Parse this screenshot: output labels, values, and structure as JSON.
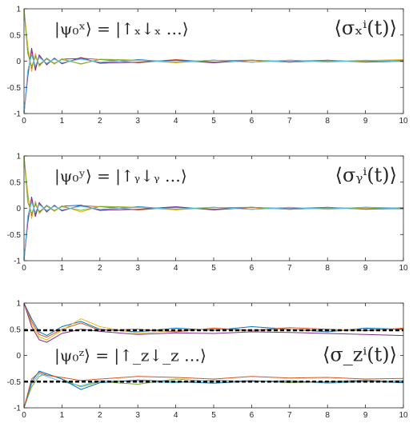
{
  "colors": {
    "axis": "#262626",
    "series": [
      "#0072BD",
      "#D95319",
      "#EDB120",
      "#7E2F8E",
      "#77AC30",
      "#4DBEEE"
    ],
    "reference": "#000000"
  },
  "chart_data": [
    {
      "type": "line",
      "xlim": [
        0,
        10
      ],
      "ylim": [
        -1,
        1
      ],
      "xticks": [
        "0",
        "1",
        "2",
        "3",
        "4",
        "5",
        "6",
        "7",
        "8",
        "9",
        "10"
      ],
      "yticks": [
        "-1",
        "-0.5",
        "0",
        "0.5",
        "1"
      ],
      "grid": false,
      "state_label": "|ψ₀ˣ⟩ = |↑ₓ↓ₓ …⟩",
      "observable_label": "⟨σₓⁱ(t)⟩",
      "series": [
        {
          "x": [
            0,
            0.1,
            0.2,
            0.3,
            0.4,
            0.6,
            0.8,
            1.0,
            1.5,
            2,
            3,
            4,
            5,
            6,
            7,
            8,
            9,
            10
          ],
          "y": [
            1,
            0.2,
            -0.15,
            0.12,
            -0.08,
            0.06,
            -0.05,
            0.04,
            0.05,
            -0.03,
            0.03,
            -0.02,
            0.02,
            -0.02,
            0.02,
            -0.01,
            0.01,
            0.0
          ]
        },
        {
          "x": [
            0,
            0.1,
            0.2,
            0.3,
            0.4,
            0.6,
            0.8,
            1.0,
            1.5,
            2,
            3,
            4,
            5,
            6,
            7,
            8,
            9,
            10
          ],
          "y": [
            -1,
            -0.25,
            0.2,
            -0.12,
            0.1,
            -0.06,
            0.05,
            -0.04,
            0.06,
            0.03,
            -0.03,
            0.03,
            -0.02,
            0.02,
            -0.02,
            0.01,
            -0.01,
            0.02
          ]
        },
        {
          "x": [
            0,
            0.1,
            0.2,
            0.3,
            0.4,
            0.6,
            0.8,
            1.0,
            1.5,
            2,
            3,
            4,
            5,
            6,
            7,
            8,
            9,
            10
          ],
          "y": [
            1,
            0.3,
            -0.2,
            0.15,
            -0.1,
            0.05,
            -0.06,
            0.05,
            -0.06,
            0.04,
            0.02,
            -0.03,
            0.02,
            -0.01,
            0.02,
            -0.02,
            0.01,
            0.03
          ]
        },
        {
          "x": [
            0,
            0.1,
            0.2,
            0.3,
            0.4,
            0.6,
            0.8,
            1.0,
            1.5,
            2,
            3,
            4,
            5,
            6,
            7,
            8,
            9,
            10
          ],
          "y": [
            -1,
            -0.3,
            0.25,
            -0.18,
            0.12,
            -0.07,
            0.06,
            -0.05,
            0.07,
            -0.04,
            -0.02,
            0.02,
            -0.03,
            0.02,
            -0.01,
            0.02,
            -0.02,
            0.0
          ]
        },
        {
          "x": [
            0,
            0.1,
            0.2,
            0.3,
            0.4,
            0.6,
            0.8,
            1.0,
            1.5,
            2,
            3,
            4,
            5,
            6,
            7,
            8,
            9,
            10
          ],
          "y": [
            1,
            0.15,
            -0.1,
            0.08,
            -0.06,
            0.04,
            -0.04,
            0.03,
            -0.05,
            0.03,
            0.02,
            -0.02,
            0.01,
            0.02,
            -0.02,
            0.01,
            -0.01,
            0.01
          ]
        },
        {
          "x": [
            0,
            0.1,
            0.2,
            0.3,
            0.4,
            0.6,
            0.8,
            1.0,
            1.5,
            2,
            3,
            4,
            5,
            6,
            7,
            8,
            9,
            10
          ],
          "y": [
            -1,
            -0.18,
            0.12,
            -0.09,
            0.07,
            -0.04,
            0.04,
            -0.03,
            0.04,
            -0.02,
            0.02,
            -0.01,
            0.02,
            -0.02,
            0.01,
            -0.01,
            0.02,
            -0.01
          ]
        }
      ]
    },
    {
      "type": "line",
      "xlim": [
        0,
        10
      ],
      "ylim": [
        -1,
        1
      ],
      "xticks": [
        "0",
        "1",
        "2",
        "3",
        "4",
        "5",
        "6",
        "7",
        "8",
        "9",
        "10"
      ],
      "yticks": [
        "-1",
        "-0.5",
        "0",
        "0.5",
        "1"
      ],
      "grid": false,
      "state_label": "|ψ₀ʸ⟩ = |↑ᵧ↓ᵧ …⟩",
      "observable_label": "⟨σᵧⁱ(t)⟩",
      "series": [
        {
          "x": [
            0,
            0.1,
            0.2,
            0.3,
            0.4,
            0.6,
            0.8,
            1.0,
            1.5,
            2,
            3,
            4,
            5,
            6,
            7,
            8,
            9,
            10
          ],
          "y": [
            1,
            0.25,
            -0.15,
            0.1,
            -0.08,
            0.06,
            -0.05,
            0.04,
            0.06,
            -0.03,
            0.03,
            -0.02,
            0.02,
            -0.02,
            0.01,
            -0.01,
            0.02,
            0.0
          ]
        },
        {
          "x": [
            0,
            0.1,
            0.2,
            0.3,
            0.4,
            0.6,
            0.8,
            1.0,
            1.5,
            2,
            3,
            4,
            5,
            6,
            7,
            8,
            9,
            10
          ],
          "y": [
            -1,
            -0.2,
            0.18,
            -0.12,
            0.09,
            -0.06,
            0.05,
            -0.04,
            0.05,
            0.03,
            -0.03,
            0.02,
            -0.02,
            0.02,
            -0.02,
            0.01,
            -0.01,
            0.01
          ]
        },
        {
          "x": [
            0,
            0.1,
            0.2,
            0.3,
            0.4,
            0.6,
            0.8,
            1.0,
            1.5,
            2,
            3,
            4,
            5,
            6,
            7,
            8,
            9,
            10
          ],
          "y": [
            1,
            0.3,
            -0.2,
            0.14,
            -0.1,
            0.05,
            -0.06,
            0.05,
            -0.07,
            0.04,
            0.02,
            -0.03,
            0.02,
            -0.01,
            0.02,
            -0.02,
            0.01,
            -0.02
          ]
        },
        {
          "x": [
            0,
            0.1,
            0.2,
            0.3,
            0.4,
            0.6,
            0.8,
            1.0,
            1.5,
            2,
            3,
            4,
            5,
            6,
            7,
            8,
            9,
            10
          ],
          "y": [
            -1,
            -0.28,
            0.22,
            -0.16,
            0.11,
            -0.07,
            0.06,
            -0.05,
            0.06,
            -0.04,
            -0.02,
            0.03,
            -0.03,
            0.02,
            -0.01,
            0.02,
            -0.02,
            0.0
          ]
        },
        {
          "x": [
            0,
            0.1,
            0.2,
            0.3,
            0.4,
            0.6,
            0.8,
            1.0,
            1.5,
            2,
            3,
            4,
            5,
            6,
            7,
            8,
            9,
            10
          ],
          "y": [
            1,
            0.12,
            -0.1,
            0.07,
            -0.06,
            0.04,
            -0.04,
            0.03,
            -0.04,
            0.03,
            0.02,
            -0.02,
            0.01,
            0.02,
            -0.02,
            0.01,
            -0.01,
            0.01
          ]
        },
        {
          "x": [
            0,
            0.1,
            0.2,
            0.3,
            0.4,
            0.6,
            0.8,
            1.0,
            1.5,
            2,
            3,
            4,
            5,
            6,
            7,
            8,
            9,
            10
          ],
          "y": [
            -1,
            -0.15,
            0.12,
            -0.08,
            0.07,
            -0.04,
            0.04,
            -0.03,
            0.04,
            -0.02,
            0.02,
            -0.01,
            0.02,
            -0.02,
            0.01,
            -0.01,
            0.02,
            -0.01
          ]
        }
      ]
    },
    {
      "type": "line",
      "xlim": [
        0,
        10
      ],
      "ylim": [
        -1,
        1
      ],
      "xticks": [
        "0",
        "1",
        "2",
        "3",
        "4",
        "5",
        "6",
        "7",
        "8",
        "9",
        "10"
      ],
      "yticks": [
        "-1",
        "-0.5",
        "0",
        "0.5",
        "1"
      ],
      "grid": false,
      "state_label": "|ψ₀ᶻ⟩ = |↑_z↓_z …⟩",
      "observable_label": "⟨σ_zⁱ(t)⟩",
      "reference_lines": [
        0.48,
        -0.5
      ],
      "series": [
        {
          "x": [
            0,
            0.2,
            0.4,
            0.6,
            1.0,
            1.5,
            2,
            3,
            4,
            5,
            6,
            7,
            8,
            9,
            10
          ],
          "y": [
            1,
            0.7,
            0.45,
            0.38,
            0.55,
            0.65,
            0.5,
            0.45,
            0.52,
            0.48,
            0.55,
            0.5,
            0.45,
            0.52,
            0.5
          ]
        },
        {
          "x": [
            0,
            0.2,
            0.4,
            0.6,
            1.0,
            1.5,
            2,
            3,
            4,
            5,
            6,
            7,
            8,
            9,
            10
          ],
          "y": [
            1,
            0.65,
            0.4,
            0.35,
            0.5,
            0.62,
            0.48,
            0.5,
            0.45,
            0.52,
            0.48,
            0.53,
            0.5,
            0.47,
            0.52
          ]
        },
        {
          "x": [
            0,
            0.2,
            0.4,
            0.6,
            1.0,
            1.5,
            2,
            3,
            4,
            5,
            6,
            7,
            8,
            9,
            10
          ],
          "y": [
            1,
            0.6,
            0.35,
            0.3,
            0.48,
            0.7,
            0.55,
            0.42,
            0.48,
            0.5,
            0.47,
            0.5,
            0.48,
            0.5,
            0.49
          ]
        },
        {
          "x": [
            0,
            0.2,
            0.4,
            0.6,
            1.0,
            1.5,
            2,
            3,
            4,
            5,
            6,
            7,
            8,
            9,
            10
          ],
          "y": [
            1,
            0.55,
            0.3,
            0.25,
            0.42,
            0.5,
            0.46,
            0.4,
            0.43,
            0.42,
            0.45,
            0.44,
            0.42,
            0.4,
            0.38
          ]
        },
        {
          "x": [
            0,
            0.2,
            0.4,
            0.6,
            1.0,
            1.5,
            2,
            3,
            4,
            5,
            6,
            7,
            8,
            9,
            10
          ],
          "y": [
            -1,
            -0.6,
            -0.4,
            -0.35,
            -0.45,
            -0.6,
            -0.5,
            -0.55,
            -0.45,
            -0.5,
            -0.48,
            -0.52,
            -0.5,
            -0.47,
            -0.5
          ]
        },
        {
          "x": [
            0,
            0.2,
            0.4,
            0.6,
            1.0,
            1.5,
            2,
            3,
            4,
            5,
            6,
            7,
            8,
            9,
            10
          ],
          "y": [
            -1,
            -0.55,
            -0.35,
            -0.4,
            -0.5,
            -0.58,
            -0.48,
            -0.5,
            -0.52,
            -0.47,
            -0.5,
            -0.48,
            -0.53,
            -0.5,
            -0.48
          ]
        },
        {
          "x": [
            0,
            0.2,
            0.4,
            0.6,
            1.0,
            1.5,
            2,
            3,
            4,
            5,
            6,
            7,
            8,
            9,
            10
          ],
          "y": [
            -1,
            -0.5,
            -0.3,
            -0.35,
            -0.45,
            -0.65,
            -0.52,
            -0.47,
            -0.5,
            -0.53,
            -0.49,
            -0.5,
            -0.51,
            -0.49,
            -0.52
          ]
        },
        {
          "x": [
            0,
            0.2,
            0.4,
            0.6,
            1.0,
            1.5,
            2,
            3,
            4,
            5,
            6,
            7,
            8,
            9,
            10
          ],
          "y": [
            -1,
            -0.45,
            -0.32,
            -0.38,
            -0.42,
            -0.48,
            -0.45,
            -0.4,
            -0.42,
            -0.45,
            -0.4,
            -0.43,
            -0.42,
            -0.45,
            -0.44
          ]
        }
      ]
    }
  ]
}
